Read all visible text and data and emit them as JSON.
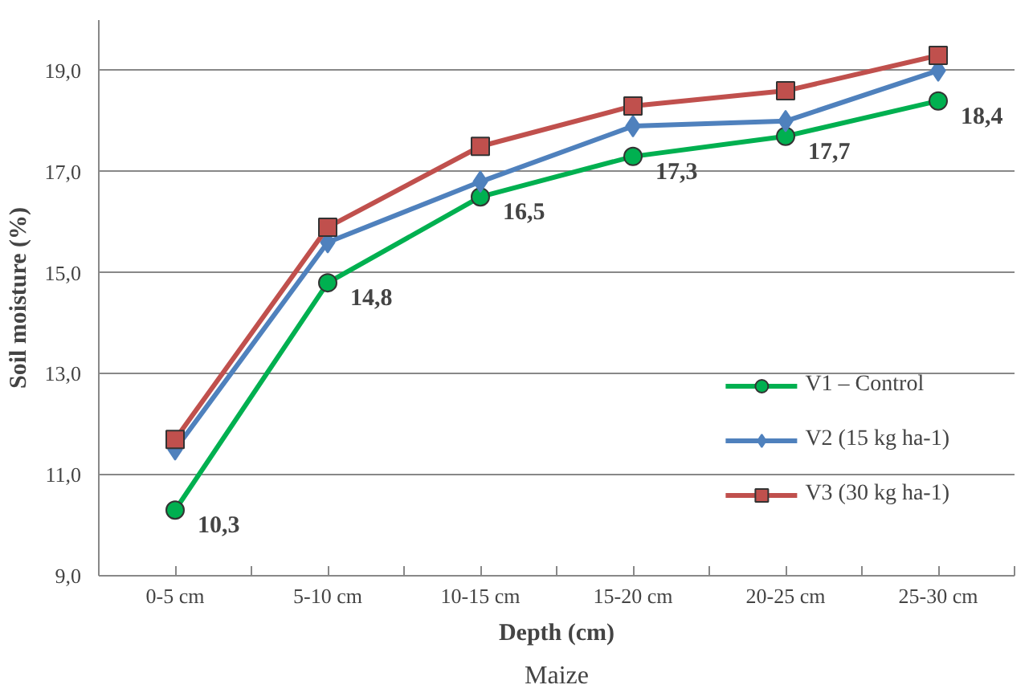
{
  "chart_data": {
    "type": "line",
    "xlabel": "Depth (cm)",
    "ylabel": "Soil moisture (%)",
    "categories": [
      "0-5 cm",
      "5-10 cm",
      "10-15 cm",
      "15-20 cm",
      "20-25 cm",
      "25-30 cm"
    ],
    "series": [
      {
        "name": "V1 – Control",
        "color": "#00b050",
        "marker": "circle",
        "values": [
          10.3,
          14.8,
          16.5,
          17.3,
          17.7,
          18.4
        ],
        "value_labels": [
          "10,3",
          "14,8",
          "16,5",
          "17,3",
          "17,7",
          "18,4"
        ]
      },
      {
        "name": "V2 (15 kg ha-1)",
        "color": "#4f81bd",
        "marker": "diamond",
        "values": [
          11.5,
          15.6,
          16.8,
          17.9,
          18.0,
          19.0
        ]
      },
      {
        "name": "V3 (30 kg ha-1)",
        "color": "#c0504d",
        "marker": "square",
        "values": [
          11.7,
          15.9,
          17.5,
          18.3,
          18.6,
          19.3
        ]
      }
    ],
    "ylim": [
      9,
      20
    ],
    "yticks": [
      {
        "value": 9,
        "label": "9,0"
      },
      {
        "value": 11,
        "label": "11,0"
      },
      {
        "value": 13,
        "label": "13,0"
      },
      {
        "value": 15,
        "label": "15,0"
      },
      {
        "value": 17,
        "label": "17,0"
      },
      {
        "value": 19,
        "label": "19,0"
      }
    ],
    "grid": "y",
    "legend": "bottom right",
    "line_style": "solid",
    "annotations": [
      "Maize"
    ]
  }
}
